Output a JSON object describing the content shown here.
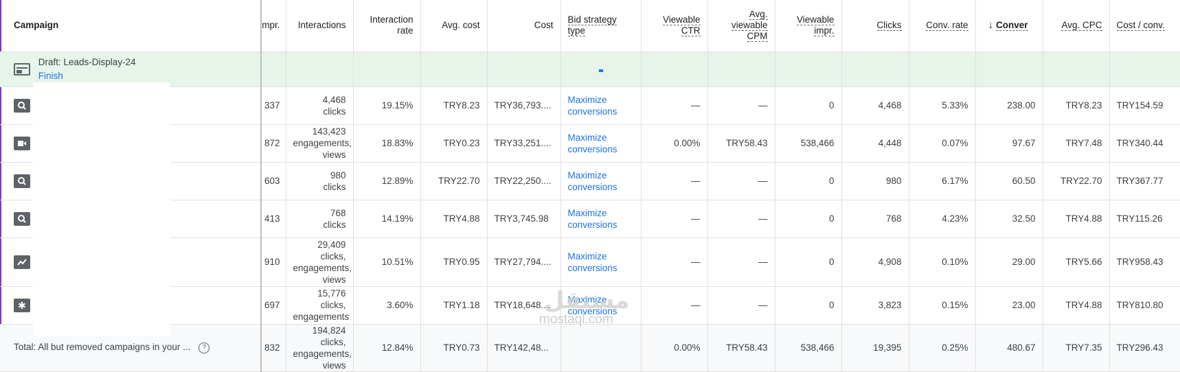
{
  "columns": {
    "campaign": "Campaign",
    "impr": "mpr.",
    "interactions": "Interactions",
    "interaction_rate": "Interaction rate",
    "avg_cost": "Avg. cost",
    "cost": "Cost",
    "bid_strategy": "Bid strategy type",
    "viewable_ctr": "Viewable CTR",
    "avg_viewable_cpm": "Avg. viewable CPM",
    "viewable_impr": "Viewable impr.",
    "clicks": "Clicks",
    "conv_rate": "Conv. rate",
    "conversions_arrow": "↓",
    "conversions": "Conver",
    "avg_cpc": "Avg. CPC",
    "cost_conv": "Cost / conv."
  },
  "draft": {
    "name": "Draft: Leads-Display-24",
    "action": "Finish"
  },
  "rows": [
    {
      "icon": "search-icon",
      "impr": "337",
      "interactions": [
        "4,468",
        "clicks"
      ],
      "interaction_rate": "19.15%",
      "avg_cost": "TRY8.23",
      "cost": "TRY36,793....",
      "bid": [
        "Maximize",
        "conversions"
      ],
      "viewable_ctr": "—",
      "avg_viewable_cpm": "—",
      "viewable_impr": "0",
      "clicks": "4,468",
      "conv_rate": "5.33%",
      "conversions": "238.00",
      "avg_cpc": "TRY8.23",
      "cost_conv": "TRY154.59"
    },
    {
      "icon": "video-icon",
      "impr": "872",
      "interactions": [
        "143,423",
        "engagements,",
        "views"
      ],
      "interaction_rate": "18.83%",
      "avg_cost": "TRY0.23",
      "cost": "TRY33,251....",
      "bid": [
        "Maximize",
        "conversions"
      ],
      "viewable_ctr": "0.00%",
      "avg_viewable_cpm": "TRY58.43",
      "viewable_impr": "538,466",
      "clicks": "4,448",
      "conv_rate": "0.07%",
      "conversions": "97.67",
      "avg_cpc": "TRY7.48",
      "cost_conv": "TRY340.44"
    },
    {
      "icon": "search-icon",
      "impr": "603",
      "interactions": [
        "980",
        "clicks"
      ],
      "interaction_rate": "12.89%",
      "avg_cost": "TRY22.70",
      "cost": "TRY22,250....",
      "bid": [
        "Maximize",
        "conversions"
      ],
      "viewable_ctr": "—",
      "avg_viewable_cpm": "—",
      "viewable_impr": "0",
      "clicks": "980",
      "conv_rate": "6.17%",
      "conversions": "60.50",
      "avg_cpc": "TRY22.70",
      "cost_conv": "TRY367.77"
    },
    {
      "icon": "search-icon",
      "impr": "413",
      "interactions": [
        "768",
        "clicks"
      ],
      "interaction_rate": "14.19%",
      "avg_cost": "TRY4.88",
      "cost": "TRY3,745.98",
      "bid": [
        "Maximize",
        "conversions"
      ],
      "viewable_ctr": "—",
      "avg_viewable_cpm": "—",
      "viewable_impr": "0",
      "clicks": "768",
      "conv_rate": "4.23%",
      "conversions": "32.50",
      "avg_cpc": "TRY4.88",
      "cost_conv": "TRY115.26"
    },
    {
      "icon": "performance-icon",
      "impr": "910",
      "interactions": [
        "29,409",
        "clicks,",
        "engagements,",
        "views"
      ],
      "interaction_rate": "10.51%",
      "avg_cost": "TRY0.95",
      "cost": "TRY27,794....",
      "bid": [
        "Maximize",
        "conversions"
      ],
      "viewable_ctr": "—",
      "avg_viewable_cpm": "—",
      "viewable_impr": "0",
      "clicks": "4,908",
      "conv_rate": "0.10%",
      "conversions": "29.00",
      "avg_cpc": "TRY5.66",
      "cost_conv": "TRY958.43"
    },
    {
      "icon": "pmax-icon",
      "impr": "697",
      "interactions": [
        "15,776",
        "clicks,",
        "engagements"
      ],
      "interaction_rate": "3.60%",
      "avg_cost": "TRY1.18",
      "cost": "TRY18,648....",
      "bid": [
        "Maximize",
        "conversions"
      ],
      "viewable_ctr": "—",
      "avg_viewable_cpm": "—",
      "viewable_impr": "0",
      "clicks": "3,823",
      "conv_rate": "0.15%",
      "conversions": "23.00",
      "avg_cpc": "TRY4.88",
      "cost_conv": "TRY810.80"
    }
  ],
  "total": {
    "label": "Total: All but removed campaigns in your ...",
    "help": "?",
    "impr": "832",
    "interactions": [
      "194,824",
      "clicks,",
      "engagements,",
      "views"
    ],
    "interaction_rate": "12.84%",
    "avg_cost": "TRY0.73",
    "cost": "TRY142,48...",
    "viewable_ctr": "0.00%",
    "avg_viewable_cpm": "TRY58.43",
    "viewable_impr": "538,466",
    "clicks": "19,395",
    "conv_rate": "0.25%",
    "conversions": "480.67",
    "avg_cpc": "TRY7.35",
    "cost_conv": "TRY296.43"
  },
  "watermark": {
    "arabic": "مستقل",
    "latin": "mostaql.com"
  },
  "colors": {
    "link": "#1a73e8",
    "draft_bg": "#e6f4ea",
    "frame": "#8430ce"
  }
}
